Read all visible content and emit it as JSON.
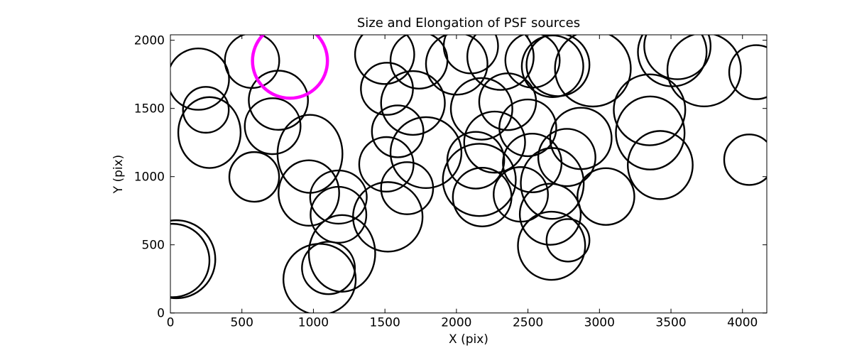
{
  "figure": {
    "background": "#ffffff"
  },
  "chart_data": {
    "type": "scatter",
    "subtype": "ellipse-patch-map",
    "title": "Size and Elongation of PSF sources",
    "xlabel": "X (pix)",
    "ylabel": "Y (pix)",
    "xlim": [
      0,
      4170
    ],
    "ylim": [
      0,
      2040
    ],
    "xticks": [
      0,
      500,
      1000,
      1500,
      2000,
      2500,
      3000,
      3500,
      4000
    ],
    "yticks": [
      0,
      500,
      1000,
      1500,
      2000
    ],
    "grid": false,
    "legend": "none",
    "ellipse_color": "#000000",
    "ellipse_linewidth": 2.4,
    "highlight_color": "#ff00ff",
    "highlight_linewidth": 4.5,
    "ellipses": [
      [
        195,
        1715,
        215,
        225
      ],
      [
        571,
        1850,
        190,
        200
      ],
      [
        755,
        1560,
        207,
        217
      ],
      [
        715,
        1370,
        195,
        205
      ],
      [
        273,
        1323,
        218,
        260
      ],
      [
        248,
        1490,
        160,
        168
      ],
      [
        976,
        1167,
        227,
        286
      ],
      [
        968,
        880,
        212,
        240
      ],
      [
        1175,
        850,
        198,
        195
      ],
      [
        1175,
        720,
        195,
        205
      ],
      [
        1200,
        437,
        232,
        281
      ],
      [
        1043,
        247,
        253,
        260
      ],
      [
        1105,
        330,
        185,
        192
      ],
      [
        586,
        998,
        174,
        182
      ],
      [
        41,
        394,
        273,
        286
      ],
      [
        16,
        385,
        257,
        269
      ],
      [
        1498,
        1896,
        207,
        217
      ],
      [
        1738,
        1853,
        199,
        208
      ],
      [
        1696,
        1540,
        223,
        234
      ],
      [
        1514,
        1644,
        182,
        191
      ],
      [
        2002,
        1827,
        215,
        226
      ],
      [
        2101,
        1957,
        190,
        200
      ],
      [
        2308,
        1879,
        232,
        243
      ],
      [
        2176,
        1497,
        215,
        226
      ],
      [
        2358,
        1549,
        199,
        208
      ],
      [
        2532,
        1853,
        190,
        200
      ],
      [
        2672,
        1809,
        215,
        226
      ],
      [
        1787,
        1176,
        248,
        260
      ],
      [
        1589,
        1332,
        180,
        190
      ],
      [
        2267,
        1253,
        213,
        224
      ],
      [
        2499,
        1358,
        199,
        208
      ],
      [
        2530,
        1100,
        205,
        215
      ],
      [
        2135,
        1120,
        199,
        208
      ],
      [
        1510,
        1090,
        190,
        200
      ],
      [
        2180,
        850,
        205,
        215
      ],
      [
        2160,
        976,
        255,
        265
      ],
      [
        1520,
        705,
        243,
        255
      ],
      [
        1655,
        915,
        182,
        191
      ],
      [
        2450,
        870,
        190,
        200
      ],
      [
        2656,
        724,
        213,
        224
      ],
      [
        2665,
        493,
        235,
        250
      ],
      [
        2780,
        533,
        150,
        156
      ],
      [
        2670,
        950,
        220,
        260
      ],
      [
        2772,
        1140,
        200,
        210
      ],
      [
        3045,
        854,
        199,
        208
      ],
      [
        2710,
        1820,
        220,
        230
      ],
      [
        2954,
        1792,
        265,
        278
      ],
      [
        3509,
        1914,
        240,
        252
      ],
      [
        3545,
        1957,
        232,
        243
      ],
      [
        3732,
        1784,
        257,
        269
      ],
      [
        3350,
        1490,
        250,
        260
      ],
      [
        3355,
        1320,
        240,
        268
      ],
      [
        3425,
        1085,
        227,
        250
      ],
      [
        2870,
        1280,
        215,
        225
      ],
      [
        4096,
        1766,
        189,
        198
      ],
      [
        4047,
        1124,
        175,
        185
      ]
    ],
    "highlight_ellipse": [
      836,
      1849,
      262,
      274
    ]
  }
}
